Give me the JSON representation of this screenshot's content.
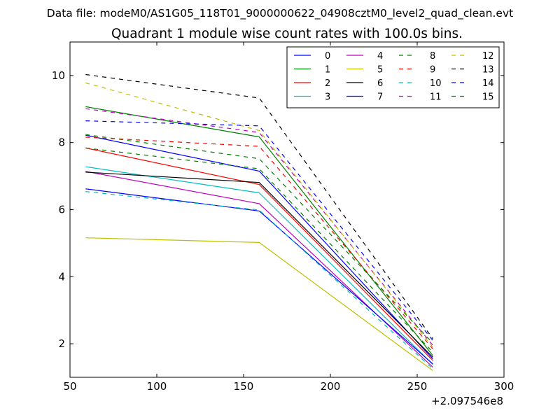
{
  "suptitle": "Data file: modeM0/AS1G05_118T01_9000000622_04908cztM0_level2_quad_clean.evt",
  "chart_data": {
    "type": "line",
    "title": "Quadrant 1 module wise count rates with 100.0s bins.",
    "xlabel": "",
    "ylabel": "",
    "x_offset_label": "+2.097546e8",
    "xlim": [
      50,
      300
    ],
    "ylim": [
      1,
      11
    ],
    "xticks": [
      50,
      100,
      150,
      200,
      250,
      300
    ],
    "yticks": [
      2,
      4,
      6,
      8,
      10
    ],
    "x": [
      59,
      159,
      259
    ],
    "legend_position": "top-right",
    "legend_columns": 4,
    "series": [
      {
        "name": "0",
        "color": "#0000ff",
        "dash": "solid",
        "values": [
          8.22,
          7.15,
          1.55
        ]
      },
      {
        "name": "1",
        "color": "#008000",
        "dash": "solid",
        "values": [
          9.07,
          8.17,
          1.65
        ]
      },
      {
        "name": "2",
        "color": "#ff0000",
        "dash": "solid",
        "values": [
          7.84,
          6.75,
          1.5
        ]
      },
      {
        "name": "3",
        "color": "#00bfbf",
        "dash": "solid",
        "values": [
          7.28,
          6.5,
          1.38
        ]
      },
      {
        "name": "4",
        "color": "#bf00bf",
        "dash": "solid",
        "values": [
          7.14,
          6.18,
          1.3
        ]
      },
      {
        "name": "5",
        "color": "#bfbf00",
        "dash": "solid",
        "values": [
          5.16,
          5.02,
          1.2
        ]
      },
      {
        "name": "6",
        "color": "#000000",
        "dash": "solid",
        "values": [
          7.12,
          6.81,
          1.6
        ]
      },
      {
        "name": "7",
        "color": "#0000ff",
        "dash": "solid",
        "values": [
          6.62,
          5.96,
          1.4
        ]
      },
      {
        "name": "8",
        "color": "#008000",
        "dash": "dashed",
        "values": [
          7.84,
          7.22,
          1.75
        ]
      },
      {
        "name": "9",
        "color": "#ff0000",
        "dash": "dashed",
        "values": [
          8.16,
          7.89,
          1.85
        ]
      },
      {
        "name": "10",
        "color": "#00bfbf",
        "dash": "dashed",
        "values": [
          6.54,
          5.99,
          1.25
        ]
      },
      {
        "name": "11",
        "color": "#bf00bf",
        "dash": "dashed",
        "values": [
          9.01,
          8.3,
          1.95
        ]
      },
      {
        "name": "12",
        "color": "#bfbf00",
        "dash": "dashed",
        "values": [
          9.78,
          8.36,
          1.9
        ]
      },
      {
        "name": "13",
        "color": "#000000",
        "dash": "dashed",
        "values": [
          10.03,
          9.33,
          2.15
        ]
      },
      {
        "name": "14",
        "color": "#0000ff",
        "dash": "dashed",
        "values": [
          8.65,
          8.5,
          2.1
        ]
      },
      {
        "name": "15",
        "color": "#008000",
        "dash": "dashed",
        "values": [
          8.24,
          7.52,
          2.02
        ]
      }
    ]
  }
}
